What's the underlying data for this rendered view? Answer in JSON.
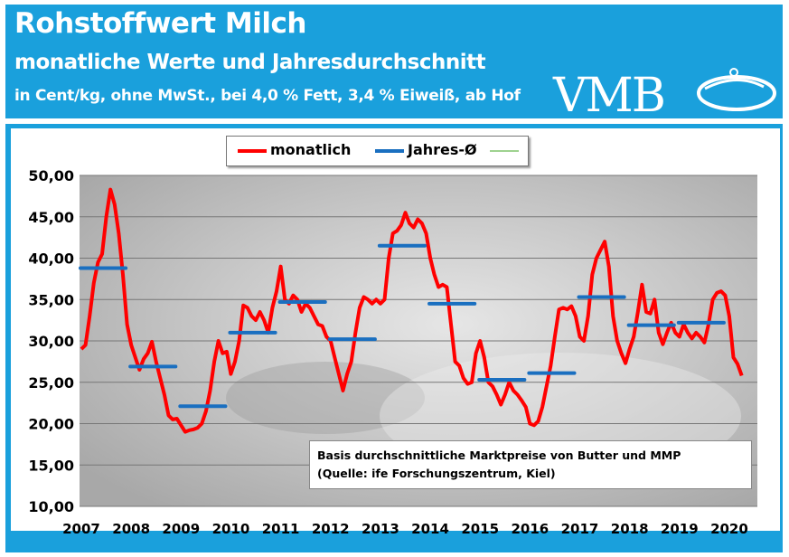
{
  "header": {
    "title": "Rohstoffwert Milch",
    "subtitle": "monatliche Werte und Jahresdurchschnitt",
    "units": "in Cent/kg, ohne MwSt., bei 4,0 % Fett, 3,4 % Eiweiß, ab Hof",
    "logo": "VMB"
  },
  "note": {
    "line1": "Basis durchschnittliche Marktpreise von Butter und MMP",
    "line2": "(Quelle: ife Forschungszentrum, Kiel)"
  },
  "chart_data": {
    "type": "line",
    "ylim": [
      10,
      50
    ],
    "yticks": [
      "10,00",
      "15,00",
      "20,00",
      "25,00",
      "30,00",
      "35,00",
      "40,00",
      "45,00",
      "50,00"
    ],
    "xticks": [
      "2007",
      "2008",
      "2009",
      "2010",
      "2011",
      "2012",
      "2013",
      "2014",
      "2015",
      "2016",
      "2017",
      "2018",
      "2019",
      "2020"
    ],
    "grid": true,
    "legend_placement": "top",
    "colors": {
      "monthly": "#ff0000",
      "annual": "#1a6fc0",
      "third": "#7fc36b"
    },
    "series": [
      {
        "name": "monatlich",
        "start": "2007-01",
        "values": [
          29,
          29.5,
          33,
          37,
          39.5,
          40.5,
          45,
          48.3,
          46.5,
          43,
          38,
          32,
          29.5,
          28,
          26.5,
          27.8,
          28.5,
          29.9,
          27.5,
          25.5,
          23.5,
          21,
          20.5,
          20.6,
          19.8,
          19,
          19.2,
          19.3,
          19.5,
          20,
          21.5,
          24,
          27.5,
          30,
          28.5,
          28.7,
          26,
          27.5,
          30,
          34.3,
          34,
          33,
          32.5,
          33.5,
          32.5,
          31,
          34,
          36,
          39,
          35,
          34.5,
          35.5,
          35,
          33.5,
          34.5,
          34,
          33,
          32,
          31.8,
          30.5,
          30,
          28,
          26,
          24,
          26,
          27.5,
          31,
          34,
          35.3,
          35,
          34.5,
          35,
          34.5,
          35,
          40,
          43,
          43.3,
          44,
          45.5,
          44.2,
          43.7,
          44.7,
          44.2,
          43,
          40,
          38,
          36.5,
          36.8,
          36.5,
          32,
          27.5,
          27,
          25.5,
          24.8,
          25,
          28.5,
          30,
          28,
          25,
          24.5,
          23.5,
          22.3,
          23.5,
          25,
          24,
          23.5,
          22.8,
          22,
          20,
          19.8,
          20.3,
          22,
          24.5,
          27,
          30.5,
          33.8,
          34,
          33.8,
          34.2,
          33,
          30.5,
          30,
          33,
          38,
          40,
          41,
          42,
          39,
          33,
          30,
          28.5,
          27.3,
          29,
          30.5,
          33.5,
          36.8,
          33.5,
          33.3,
          35,
          31,
          29.6,
          31,
          32.2,
          31,
          30.5,
          32,
          31,
          30.3,
          31,
          30.5,
          29.8,
          32,
          35,
          35.8,
          36,
          35.5,
          33,
          28,
          27.2,
          25.8
        ]
      },
      {
        "name": "Jahres-Ø",
        "years": [
          2007,
          2008,
          2009,
          2010,
          2011,
          2012,
          2013,
          2014,
          2015,
          2016,
          2017,
          2018,
          2019
        ],
        "values": [
          38.8,
          26.9,
          22.1,
          31.0,
          34.7,
          30.2,
          41.5,
          34.5,
          25.3,
          26.1,
          35.3,
          31.9,
          32.2
        ]
      },
      {
        "name": "",
        "values": []
      }
    ]
  }
}
